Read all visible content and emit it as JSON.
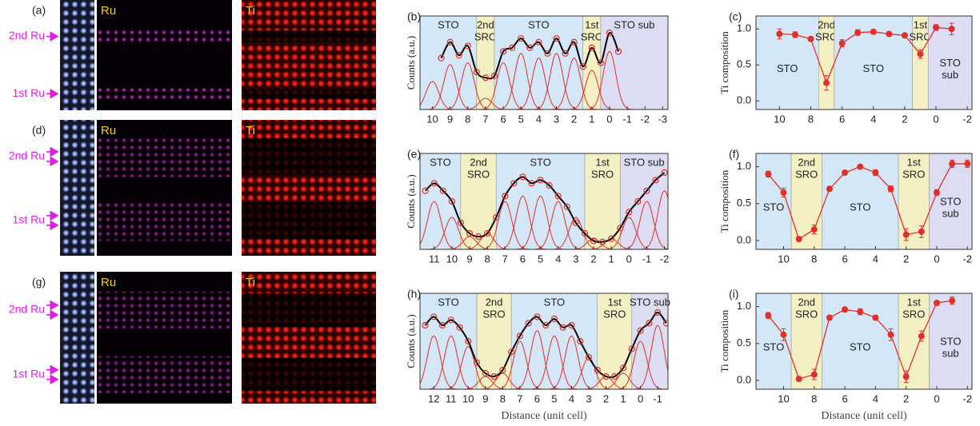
{
  "panels": [
    {
      "letter": "(a)",
      "ru_label": "Ru",
      "ti_label": "Ti",
      "markers": [
        "2nd Ru",
        "1st Ru"
      ]
    },
    {
      "letter": "(d)",
      "ru_label": "Ru",
      "ti_label": "Ti",
      "markers": [
        "2nd Ru",
        "1st Ru"
      ]
    },
    {
      "letter": "(g)",
      "ru_label": "Ru",
      "ti_label": "Ti",
      "markers": [
        "2nd Ru",
        "1st Ru"
      ]
    }
  ],
  "chart_data": [
    {
      "type": "scatter",
      "letter": "(b)",
      "y_label": "Counts (a.u.)",
      "xlim": [
        10.7,
        -3.3
      ],
      "xticks": [
        10,
        9,
        8,
        7,
        6,
        5,
        4,
        3,
        2,
        1,
        0,
        -1,
        -2,
        -3
      ],
      "ylim": [
        0,
        1
      ],
      "regions": [
        {
          "label": [
            "STO"
          ],
          "from": 10.7,
          "to": 7.5,
          "color": "#d4e7f6"
        },
        {
          "label": [
            "2nd",
            "SRO"
          ],
          "from": 7.5,
          "to": 6.5,
          "color": "#f5efc4"
        },
        {
          "label": [
            "STO"
          ],
          "from": 6.5,
          "to": 1.5,
          "color": "#d4e7f6"
        },
        {
          "label": [
            "1st",
            "SRO"
          ],
          "from": 1.5,
          "to": 0.5,
          "color": "#f5efc4"
        },
        {
          "label": [
            "STO sub"
          ],
          "from": 0.5,
          "to": -3.3,
          "color": "#dcdcf3"
        }
      ],
      "x": [
        9.5,
        9,
        8.5,
        8,
        7.5,
        7,
        6.5,
        6,
        5.5,
        5,
        4.5,
        4,
        3.5,
        3,
        2.5,
        2,
        1.5,
        1,
        0.5,
        0,
        -0.5
      ],
      "series": [
        {
          "color": "#e0302a",
          "line_color": "#000000",
          "values": [
            0.55,
            0.72,
            0.58,
            0.68,
            0.4,
            0.34,
            0.36,
            0.62,
            0.66,
            0.76,
            0.66,
            0.72,
            0.6,
            0.76,
            0.6,
            0.72,
            0.46,
            0.66,
            0.5,
            0.82,
            0.62
          ]
        }
      ],
      "peaks": {
        "color": "#e0302a",
        "width": 0.36,
        "centers": [
          10,
          9,
          8,
          7,
          6,
          5,
          4,
          3,
          2,
          1,
          0
        ],
        "heights": [
          0.3,
          0.48,
          0.5,
          0.12,
          0.5,
          0.6,
          0.55,
          0.6,
          0.55,
          0.42,
          0.62
        ]
      }
    },
    {
      "type": "line",
      "letter": "(c)",
      "y_label": "Ti composition",
      "xlim": [
        11.5,
        -2.3
      ],
      "xticks": [
        10,
        8,
        6,
        4,
        2,
        0,
        -2
      ],
      "ylim": [
        -0.12,
        1.18
      ],
      "yticks": [
        {
          "value": 0,
          "label": "0.0"
        },
        {
          "value": 0.5,
          "label": "0.5"
        },
        {
          "value": 1,
          "label": "1.0"
        }
      ],
      "regions": [
        {
          "label": [
            "STO"
          ],
          "from": 11.5,
          "to": 7.5,
          "color": "#d4e7f6"
        },
        {
          "label": [
            "2nd",
            "SRO"
          ],
          "from": 7.5,
          "to": 6.5,
          "color": "#f5efc4"
        },
        {
          "label": [
            "STO"
          ],
          "from": 6.5,
          "to": 1.5,
          "color": "#d4e7f6"
        },
        {
          "label": [
            "1st",
            "SRO"
          ],
          "from": 1.5,
          "to": 0.5,
          "color": "#f5efc4"
        },
        {
          "label": [
            "STO",
            "sub"
          ],
          "from": 0.5,
          "to": -2.3,
          "color": "#dcdcf3"
        }
      ],
      "x": [
        10,
        9,
        8,
        7,
        6,
        5,
        4,
        3,
        2,
        1,
        0,
        -1
      ],
      "series": [
        {
          "color": "#e0302a",
          "values": [
            0.93,
            0.92,
            0.86,
            0.25,
            0.8,
            0.95,
            0.96,
            0.93,
            0.91,
            0.65,
            1.02,
            1.0
          ],
          "errors": [
            0.07,
            0.04,
            0.03,
            0.1,
            0.05,
            0.04,
            0.03,
            0.03,
            0.03,
            0.06,
            0.04,
            0.08
          ]
        }
      ]
    },
    {
      "type": "scatter",
      "letter": "(e)",
      "y_label": "Counts (a.u.)",
      "xlim": [
        11.8,
        -2.2
      ],
      "xticks": [
        11,
        10,
        9,
        8,
        7,
        6,
        5,
        4,
        3,
        2,
        1,
        0,
        -1,
        -2
      ],
      "ylim": [
        0,
        0.9
      ],
      "regions": [
        {
          "label": [
            "STO"
          ],
          "from": 11.8,
          "to": 9.5,
          "color": "#d4e7f6"
        },
        {
          "label": [
            "2nd",
            "SRO"
          ],
          "from": 9.5,
          "to": 7.5,
          "color": "#f5efc4"
        },
        {
          "label": [
            "STO"
          ],
          "from": 7.5,
          "to": 2.5,
          "color": "#d4e7f6"
        },
        {
          "label": [
            "1st",
            "SRO"
          ],
          "from": 2.5,
          "to": 0.5,
          "color": "#f5efc4"
        },
        {
          "label": [
            "STO sub"
          ],
          "from": 0.5,
          "to": -2.2,
          "color": "#dcdcf3"
        }
      ],
      "x": [
        11.5,
        11,
        10.5,
        10,
        9.5,
        9,
        8.5,
        8,
        7.5,
        7,
        6.5,
        6,
        5.5,
        5,
        4.5,
        4,
        3.5,
        3,
        2.5,
        2,
        1.5,
        1,
        0.5,
        0,
        -0.5,
        -1,
        -1.5,
        -2
      ],
      "series": [
        {
          "color": "#e0302a",
          "line_color": "#000000",
          "values": [
            0.55,
            0.62,
            0.55,
            0.45,
            0.25,
            0.15,
            0.12,
            0.15,
            0.3,
            0.5,
            0.62,
            0.68,
            0.62,
            0.65,
            0.6,
            0.5,
            0.4,
            0.25,
            0.15,
            0.08,
            0.07,
            0.1,
            0.2,
            0.35,
            0.45,
            0.55,
            0.65,
            0.72
          ]
        }
      ],
      "peaks": {
        "color": "#e0302a",
        "width": 0.38,
        "centers": [
          11,
          10,
          9,
          8,
          7,
          6,
          5,
          4,
          3,
          2,
          1,
          0,
          -1,
          -2
        ],
        "heights": [
          0.45,
          0.3,
          0.12,
          0.15,
          0.45,
          0.5,
          0.5,
          0.45,
          0.3,
          0.1,
          0.1,
          0.3,
          0.45,
          0.55
        ]
      }
    },
    {
      "type": "line",
      "letter": "(f)",
      "y_label": "Ti composition",
      "xlim": [
        11.8,
        -2.3
      ],
      "xticks": [
        10,
        8,
        6,
        4,
        2,
        0,
        -2
      ],
      "ylim": [
        -0.12,
        1.18
      ],
      "yticks": [
        {
          "value": 0,
          "label": "0.0"
        },
        {
          "value": 0.5,
          "label": "0.5"
        },
        {
          "value": 1,
          "label": "1.0"
        }
      ],
      "regions": [
        {
          "label": [
            "STO"
          ],
          "from": 11.8,
          "to": 9.5,
          "color": "#d4e7f6"
        },
        {
          "label": [
            "2nd",
            "SRO"
          ],
          "from": 9.5,
          "to": 7.5,
          "color": "#f5efc4"
        },
        {
          "label": [
            "STO"
          ],
          "from": 7.5,
          "to": 2.5,
          "color": "#d4e7f6"
        },
        {
          "label": [
            "1st",
            "SRO"
          ],
          "from": 2.5,
          "to": 0.5,
          "color": "#f5efc4"
        },
        {
          "label": [
            "STO",
            "sub"
          ],
          "from": 0.5,
          "to": -2.3,
          "color": "#dcdcf3"
        }
      ],
      "x": [
        11,
        10,
        9,
        8,
        7,
        6,
        5,
        4,
        3,
        2,
        1,
        0,
        -1,
        -2
      ],
      "series": [
        {
          "color": "#e0302a",
          "values": [
            0.9,
            0.65,
            0.02,
            0.15,
            0.7,
            0.92,
            1.0,
            0.92,
            0.7,
            0.08,
            0.12,
            0.65,
            1.04,
            1.04
          ],
          "errors": [
            0.04,
            0.06,
            0.03,
            0.06,
            0.03,
            0.03,
            0.02,
            0.04,
            0.04,
            0.08,
            0.08,
            0.04,
            0.05,
            0.05
          ]
        }
      ]
    },
    {
      "type": "scatter",
      "letter": "(h)",
      "y_label": "Counts (a.u.)",
      "x_label": "Distance (unit cell)",
      "xlim": [
        12.8,
        -1.6
      ],
      "xticks": [
        12,
        11,
        10,
        9,
        8,
        7,
        6,
        5,
        4,
        3,
        2,
        1,
        0,
        -1
      ],
      "ylim": [
        0,
        0.9
      ],
      "regions": [
        {
          "label": [
            "STO"
          ],
          "from": 12.8,
          "to": 9.5,
          "color": "#d4e7f6"
        },
        {
          "label": [
            "2nd",
            "SRO"
          ],
          "from": 9.5,
          "to": 7.5,
          "color": "#f5efc4"
        },
        {
          "label": [
            "STO"
          ],
          "from": 7.5,
          "to": 2.5,
          "color": "#d4e7f6"
        },
        {
          "label": [
            "1st",
            "SRO"
          ],
          "from": 2.5,
          "to": 0.5,
          "color": "#f5efc4"
        },
        {
          "label": [
            "STO sub"
          ],
          "from": 0.5,
          "to": -1.6,
          "color": "#dcdcf3"
        }
      ],
      "x": [
        12.5,
        12,
        11.5,
        11,
        10.5,
        10,
        9.5,
        9,
        8.5,
        8,
        7.5,
        7,
        6.5,
        6,
        5.5,
        5,
        4.5,
        4,
        3.5,
        3,
        2.5,
        2,
        1.5,
        1,
        0.5,
        0,
        -0.5,
        -1,
        -1.5
      ],
      "series": [
        {
          "color": "#e0302a",
          "line_color": "#000000",
          "values": [
            0.6,
            0.68,
            0.6,
            0.65,
            0.58,
            0.45,
            0.25,
            0.15,
            0.12,
            0.18,
            0.35,
            0.5,
            0.62,
            0.68,
            0.6,
            0.66,
            0.58,
            0.6,
            0.45,
            0.3,
            0.18,
            0.12,
            0.12,
            0.2,
            0.38,
            0.55,
            0.62,
            0.72,
            0.62
          ]
        }
      ],
      "peaks": {
        "color": "#e0302a",
        "width": 0.38,
        "centers": [
          12,
          11,
          10,
          9,
          8,
          7,
          6,
          5,
          4,
          3,
          2,
          1,
          0,
          -1
        ],
        "heights": [
          0.5,
          0.5,
          0.4,
          0.12,
          0.15,
          0.45,
          0.55,
          0.5,
          0.5,
          0.3,
          0.12,
          0.15,
          0.45,
          0.6
        ]
      }
    },
    {
      "type": "line",
      "letter": "(i)",
      "y_label": "Ti composition",
      "x_label": "Distance (unit cell)",
      "xlim": [
        11.8,
        -2.3
      ],
      "xticks": [
        10,
        8,
        6,
        4,
        2,
        0,
        -2
      ],
      "ylim": [
        -0.12,
        1.18
      ],
      "yticks": [
        {
          "value": 0,
          "label": "0.0"
        },
        {
          "value": 0.5,
          "label": "0.5"
        },
        {
          "value": 1,
          "label": "1.0"
        }
      ],
      "regions": [
        {
          "label": [
            "STO"
          ],
          "from": 11.8,
          "to": 9.5,
          "color": "#d4e7f6"
        },
        {
          "label": [
            "2nd",
            "SRO"
          ],
          "from": 9.5,
          "to": 7.5,
          "color": "#f5efc4"
        },
        {
          "label": [
            "STO"
          ],
          "from": 7.5,
          "to": 2.5,
          "color": "#d4e7f6"
        },
        {
          "label": [
            "1st",
            "SRO"
          ],
          "from": 2.5,
          "to": 0.5,
          "color": "#f5efc4"
        },
        {
          "label": [
            "STO",
            "sub"
          ],
          "from": 0.5,
          "to": -2.3,
          "color": "#dcdcf3"
        }
      ],
      "x": [
        11,
        10,
        9,
        8,
        7,
        6,
        5,
        4,
        3,
        2,
        1,
        0,
        -1
      ],
      "series": [
        {
          "color": "#e0302a",
          "values": [
            0.88,
            0.62,
            0.02,
            0.08,
            0.85,
            0.96,
            0.93,
            0.85,
            0.62,
            0.05,
            0.6,
            1.05,
            1.08
          ],
          "errors": [
            0.04,
            0.08,
            0.03,
            0.07,
            0.03,
            0.03,
            0.04,
            0.03,
            0.08,
            0.08,
            0.07,
            0.03,
            0.05
          ]
        }
      ]
    }
  ]
}
